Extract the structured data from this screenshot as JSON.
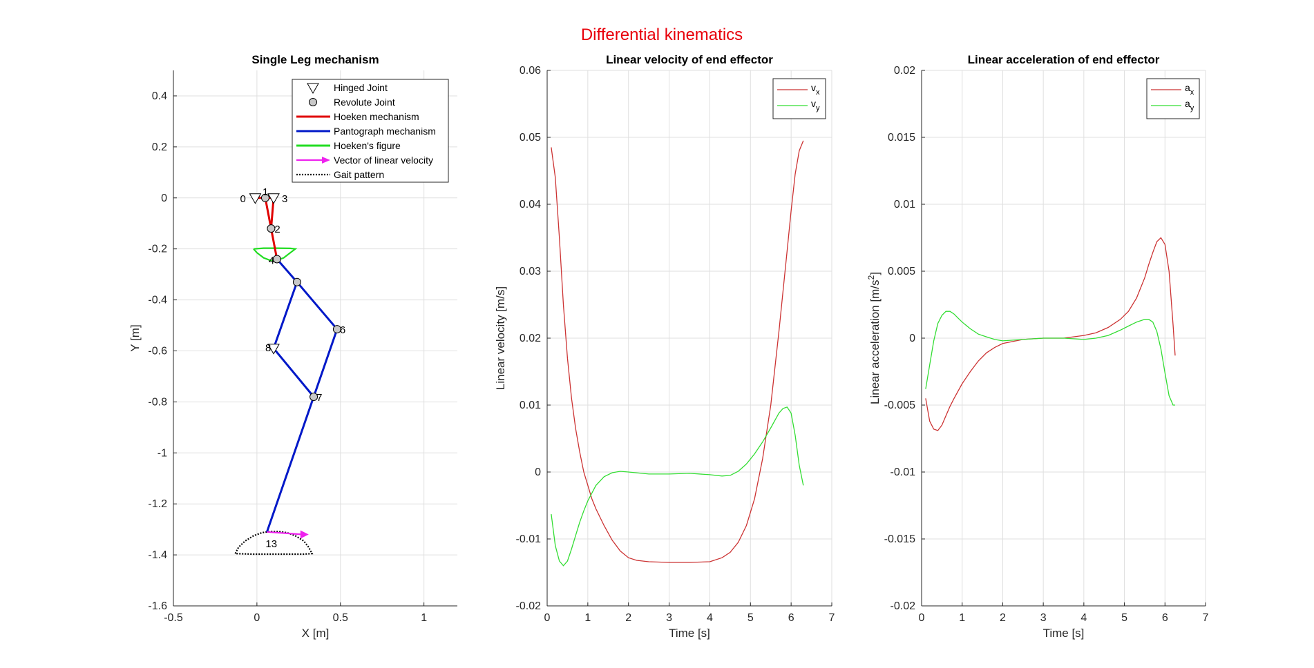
{
  "figure_title": "Differential kinematics",
  "chart_data": [
    {
      "type": "line",
      "title": "Single Leg mechanism",
      "xlabel": "X [m]",
      "ylabel": "Y [m]",
      "xlim": [
        -0.5,
        1.2
      ],
      "ylim": [
        -1.6,
        0.5
      ],
      "xticks": [
        -0.5,
        0,
        0.5,
        1
      ],
      "xtick_labels": [
        "-0.5",
        "0",
        "0.5",
        "1"
      ],
      "yticks": [
        -1.6,
        -1.4,
        -1.2,
        -1,
        -0.8,
        -0.6,
        -0.4,
        -0.2,
        0,
        0.2,
        0.4
      ],
      "ytick_labels": [
        "-1.6",
        "-1.4",
        "-1.2",
        "-1",
        "-0.8",
        "-0.6",
        "-0.4",
        "-0.2",
        "0",
        "0.2",
        "0.4"
      ],
      "grid": true,
      "legend_position": "top-right",
      "legend": [
        {
          "label": "Hinged Joint",
          "marker": "triangle",
          "color": "#000000"
        },
        {
          "label": "Revolute Joint",
          "marker": "circle",
          "color": "#000000"
        },
        {
          "label": "Hoeken mechanism",
          "color": "#e00000"
        },
        {
          "label": "Pantograph mechanism",
          "color": "#0018c8"
        },
        {
          "label": "Hoeken's figure",
          "color": "#22dd22"
        },
        {
          "label": "Vector of linear velocity",
          "color": "#ee22ee"
        },
        {
          "label": "Gait pattern",
          "color": "#000000",
          "style": "dotted"
        }
      ],
      "hinged_joints": [
        {
          "label": "0",
          "x": -0.01,
          "y": 0.0
        },
        {
          "label": "3",
          "x": 0.1,
          "y": 0.0
        },
        {
          "label": "8",
          "x": 0.1,
          "y": -0.59
        }
      ],
      "revolute_joints": [
        {
          "label": "1",
          "x": 0.05,
          "y": 0.0
        },
        {
          "label": "2",
          "x": 0.085,
          "y": -0.12
        },
        {
          "label": "4",
          "x": 0.12,
          "y": -0.24
        },
        {
          "label": "",
          "x": 0.24,
          "y": -0.33
        },
        {
          "label": "6",
          "x": 0.48,
          "y": -0.515
        },
        {
          "label": "7",
          "x": 0.34,
          "y": -0.78
        }
      ],
      "end_effector": {
        "label": "13",
        "x": 0.06,
        "y": -1.31
      },
      "hoeken_links": [
        [
          [
            0.05,
            0.0
          ],
          [
            0.085,
            -0.12
          ]
        ],
        [
          [
            0.1,
            0.0
          ],
          [
            0.085,
            -0.12
          ]
        ],
        [
          [
            0.085,
            -0.12
          ],
          [
            0.12,
            -0.24
          ]
        ],
        [
          [
            -0.01,
            0.0
          ],
          [
            0.1,
            0.0
          ]
        ]
      ],
      "pantograph_links": [
        [
          [
            0.12,
            -0.24
          ],
          [
            0.24,
            -0.33
          ]
        ],
        [
          [
            0.24,
            -0.33
          ],
          [
            0.48,
            -0.515
          ]
        ],
        [
          [
            0.48,
            -0.515
          ],
          [
            0.34,
            -0.78
          ]
        ],
        [
          [
            0.24,
            -0.33
          ],
          [
            0.1,
            -0.59
          ]
        ],
        [
          [
            0.1,
            -0.59
          ],
          [
            0.34,
            -0.78
          ]
        ],
        [
          [
            0.34,
            -0.78
          ],
          [
            0.06,
            -1.31
          ]
        ]
      ],
      "hoeken_figure": {
        "x": [
          -0.02,
          0.0,
          0.04,
          0.08,
          0.12,
          0.16,
          0.2,
          0.23,
          0.2,
          0.12,
          0.04,
          -0.02
        ],
        "y": [
          -0.2,
          -0.215,
          -0.235,
          -0.245,
          -0.245,
          -0.235,
          -0.215,
          -0.2,
          -0.198,
          -0.197,
          -0.197,
          -0.2
        ]
      },
      "gait_pattern": {
        "x": [
          -0.13,
          -0.11,
          -0.07,
          -0.02,
          0.03,
          0.08,
          0.13,
          0.18,
          0.23,
          0.28,
          0.31,
          0.33,
          0.28,
          0.18,
          0.08,
          -0.02,
          -0.13
        ],
        "y": [
          -1.395,
          -1.37,
          -1.345,
          -1.325,
          -1.313,
          -1.308,
          -1.308,
          -1.313,
          -1.325,
          -1.345,
          -1.37,
          -1.395,
          -1.397,
          -1.397,
          -1.397,
          -1.397,
          -1.395
        ]
      },
      "velocity_vector": {
        "x": 0.06,
        "y": -1.31,
        "dx": 0.25,
        "dy": -0.01
      }
    },
    {
      "type": "line",
      "title": "Linear velocity of end effector",
      "xlabel": "Time [s]",
      "ylabel": "Linear velocity [m/s]",
      "xlim": [
        0,
        7
      ],
      "ylim": [
        -0.02,
        0.06
      ],
      "xticks": [
        0,
        1,
        2,
        3,
        4,
        5,
        6,
        7
      ],
      "xtick_labels": [
        "0",
        "1",
        "2",
        "3",
        "4",
        "5",
        "6",
        "7"
      ],
      "yticks": [
        -0.02,
        -0.01,
        0,
        0.01,
        0.02,
        0.03,
        0.04,
        0.05,
        0.06
      ],
      "ytick_labels": [
        "-0.02",
        "-0.01",
        "0",
        "0.01",
        "0.02",
        "0.03",
        "0.04",
        "0.05",
        "0.06"
      ],
      "grid": true,
      "legend_position": "top-right",
      "series": [
        {
          "name": "v",
          "subscript": "x",
          "color": "#cc3333",
          "x": [
            0.1,
            0.2,
            0.3,
            0.4,
            0.5,
            0.6,
            0.7,
            0.8,
            0.9,
            1.0,
            1.1,
            1.2,
            1.4,
            1.6,
            1.8,
            2.0,
            2.2,
            2.5,
            3.0,
            3.5,
            4.0,
            4.3,
            4.5,
            4.7,
            4.9,
            5.1,
            5.3,
            5.5,
            5.7,
            5.9,
            6.0,
            6.1,
            6.2,
            6.3
          ],
          "y": [
            0.0485,
            0.044,
            0.035,
            0.025,
            0.017,
            0.011,
            0.0065,
            0.003,
            0.0,
            -0.002,
            -0.004,
            -0.0055,
            -0.008,
            -0.0102,
            -0.0118,
            -0.0128,
            -0.0132,
            -0.0134,
            -0.0135,
            -0.0135,
            -0.0134,
            -0.0128,
            -0.012,
            -0.0105,
            -0.008,
            -0.004,
            0.002,
            0.01,
            0.021,
            0.033,
            0.039,
            0.0445,
            0.048,
            0.0495
          ]
        },
        {
          "name": "v",
          "subscript": "y",
          "color": "#33dd33",
          "x": [
            0.1,
            0.2,
            0.3,
            0.4,
            0.5,
            0.6,
            0.7,
            0.8,
            0.9,
            1.0,
            1.2,
            1.4,
            1.6,
            1.8,
            2.0,
            2.5,
            3.0,
            3.5,
            4.0,
            4.3,
            4.5,
            4.7,
            4.9,
            5.1,
            5.3,
            5.5,
            5.7,
            5.8,
            5.9,
            6.0,
            6.1,
            6.2,
            6.3
          ],
          "y": [
            -0.0063,
            -0.011,
            -0.0133,
            -0.014,
            -0.0133,
            -0.0115,
            -0.0095,
            -0.0075,
            -0.0058,
            -0.0043,
            -0.002,
            -0.0007,
            -0.0001,
            0.0001,
            0.0,
            -0.0003,
            -0.0003,
            -0.0002,
            -0.0004,
            -0.0006,
            -0.0005,
            0.0001,
            0.0012,
            0.0027,
            0.0045,
            0.0066,
            0.0088,
            0.0095,
            0.0097,
            0.0088,
            0.0055,
            0.001,
            -0.002
          ]
        }
      ]
    },
    {
      "type": "line",
      "title": "Linear acceleration of end effector",
      "xlabel": "Time [s]",
      "ylabel": "Linear acceleration  [m/s",
      "ylabel_superscript": "2",
      "ylabel_suffix": "]",
      "xlim": [
        0,
        7
      ],
      "ylim": [
        -0.02,
        0.02
      ],
      "xticks": [
        0,
        1,
        2,
        3,
        4,
        5,
        6,
        7
      ],
      "xtick_labels": [
        "0",
        "1",
        "2",
        "3",
        "4",
        "5",
        "6",
        "7"
      ],
      "yticks": [
        -0.02,
        -0.015,
        -0.01,
        -0.005,
        0,
        0.005,
        0.01,
        0.015,
        0.02
      ],
      "ytick_labels": [
        "-0.02",
        "-0.015",
        "-0.01",
        "-0.005",
        "0",
        "0.005",
        "0.01",
        "0.015",
        "0.02"
      ],
      "grid": true,
      "legend_position": "top-right",
      "series": [
        {
          "name": "a",
          "subscript": "x",
          "color": "#cc3333",
          "x": [
            0.1,
            0.2,
            0.3,
            0.4,
            0.5,
            0.6,
            0.7,
            0.8,
            1.0,
            1.2,
            1.4,
            1.6,
            1.8,
            2.0,
            2.5,
            3.0,
            3.5,
            4.0,
            4.3,
            4.6,
            4.9,
            5.1,
            5.3,
            5.5,
            5.6,
            5.7,
            5.8,
            5.9,
            6.0,
            6.1,
            6.2,
            6.25
          ],
          "y": [
            -0.0045,
            -0.0062,
            -0.0068,
            -0.0069,
            -0.0065,
            -0.0058,
            -0.0051,
            -0.0045,
            -0.0034,
            -0.0025,
            -0.0017,
            -0.0011,
            -0.0007,
            -0.0004,
            -0.0001,
            0.0,
            0.0,
            0.0002,
            0.0004,
            0.0008,
            0.0014,
            0.002,
            0.003,
            0.0045,
            0.0055,
            0.0064,
            0.0072,
            0.0075,
            0.007,
            0.005,
            0.001,
            -0.0013
          ]
        },
        {
          "name": "a",
          "subscript": "y",
          "color": "#33dd33",
          "x": [
            0.1,
            0.2,
            0.3,
            0.4,
            0.5,
            0.6,
            0.7,
            0.8,
            0.9,
            1.0,
            1.2,
            1.4,
            1.6,
            1.8,
            2.0,
            2.5,
            3.0,
            3.5,
            4.0,
            4.3,
            4.6,
            4.9,
            5.1,
            5.3,
            5.5,
            5.6,
            5.7,
            5.8,
            5.9,
            6.0,
            6.1,
            6.2,
            6.25
          ],
          "y": [
            -0.0038,
            -0.002,
            -0.0002,
            0.0011,
            0.0017,
            0.002,
            0.002,
            0.0018,
            0.0015,
            0.0012,
            0.0007,
            0.0003,
            0.0001,
            -0.0001,
            -0.0002,
            -0.0001,
            0.0,
            0.0,
            -0.0001,
            0.0,
            0.0002,
            0.0006,
            0.0009,
            0.0012,
            0.0014,
            0.0014,
            0.0012,
            0.0005,
            -0.0008,
            -0.0026,
            -0.0043,
            -0.005,
            -0.005
          ]
        }
      ]
    }
  ]
}
